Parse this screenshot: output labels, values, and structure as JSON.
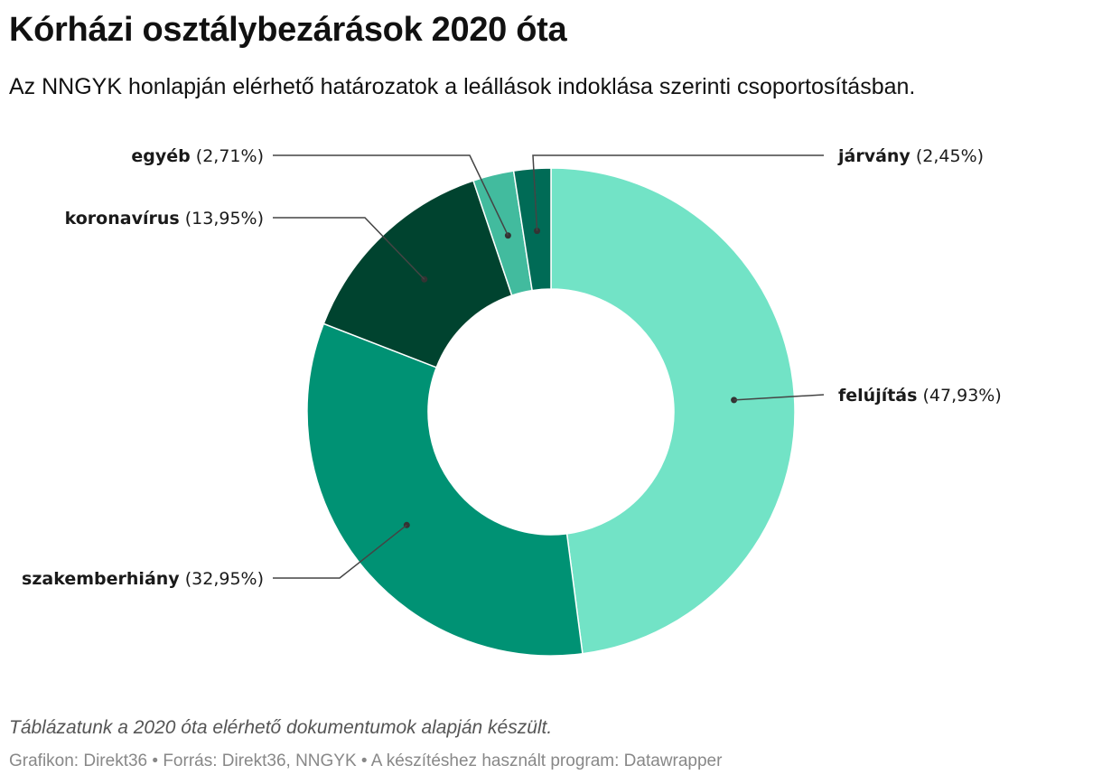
{
  "chart_data": {
    "type": "pie",
    "variant": "donut",
    "title": "Kórházi osztálybezárások 2020 óta",
    "subtitle": "Az NNGYK honlapján elérhető határozatok a leállások indoklása szerinti csoportosításban.",
    "slices": [
      {
        "label": "felújítás",
        "value_label": "(47,93%)",
        "value": 47.93,
        "color": "#72e3c6"
      },
      {
        "label": "szakemberhiány",
        "value_label": "(32,95%)",
        "value": 32.95,
        "color": "#009274"
      },
      {
        "label": "koronavírus",
        "value_label": "(13,95%)",
        "value": 13.95,
        "color": "#00432f"
      },
      {
        "label": "egyéb",
        "value_label": "(2,71%)",
        "value": 2.71,
        "color": "#42bb9e"
      },
      {
        "label": "járvány",
        "value_label": "(2,45%)",
        "value": 2.45,
        "color": "#006b56"
      }
    ],
    "legend": "none",
    "labels": "outside-with-leader-lines"
  },
  "footer": {
    "note": "Táblázatunk a 2020 óta elérhető dokumentumok alapján készült.",
    "credits": "Grafikon: Direkt36 • Forrás: Direkt36, NNGYK • A készítéshez használt program: Datawrapper"
  }
}
